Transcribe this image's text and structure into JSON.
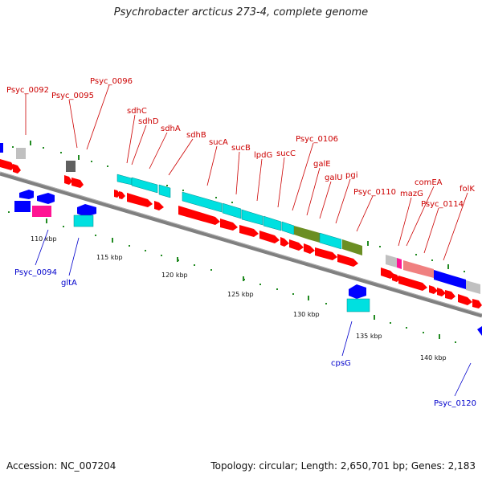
{
  "title": "Psychrobacter arcticus 273-4, complete genome",
  "footer": {
    "accession": "Accession: NC_007204",
    "summary": "Topology: circular; Length: 2,650,701 bp; Genes: 2,183"
  },
  "colors": {
    "label_red": "#cc0000",
    "label_blue": "#0000cc",
    "tick_green": "#228b22",
    "backbone": "#808080",
    "gene_red": "#ff0000",
    "gene_blue": "#0000ff",
    "gene_cyan": "#00e0e0",
    "gene_olive": "#6b8e23",
    "gene_gray": "#c0c0c0",
    "gene_magenta": "#ff1493",
    "gene_salmon": "#f08080"
  },
  "scale_labels": [
    "110 kbp",
    "115 kbp",
    "120 kbp",
    "125 kbp",
    "130 kbp",
    "135 kbp",
    "140 kbp"
  ],
  "upper_labels": [
    "Psyc_0092",
    "Psyc_0095",
    "Psyc_0096",
    "sdhC",
    "sdhD",
    "sdhA",
    "sdhB",
    "sucA",
    "sucB",
    "lpdG",
    "sucC",
    "Psyc_0106",
    "galE",
    "galU",
    "pgi",
    "Psyc_0110",
    "comEA",
    "mazG",
    "Psyc_0114",
    "folK"
  ],
  "lower_labels": [
    "Psyc_0094",
    "gltA",
    "cpsG",
    "Psyc_0120"
  ]
}
